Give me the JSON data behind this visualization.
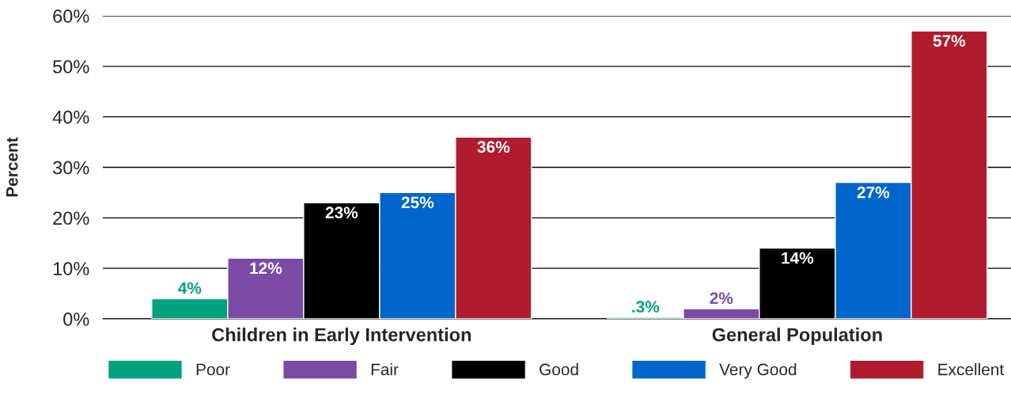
{
  "chart_data": {
    "type": "bar",
    "categories": [
      "Children in Early Intervention",
      "General Population"
    ],
    "ylabel": "Percent",
    "series": [
      {
        "name": "Poor",
        "color": "#00a17e",
        "values": [
          4,
          0.3
        ],
        "value_labels": [
          "4%",
          ".3%"
        ]
      },
      {
        "name": "Fair",
        "color": "#7b4aa5",
        "values": [
          12,
          2
        ],
        "value_labels": [
          "12%",
          "2%"
        ]
      },
      {
        "name": "Good",
        "color": "#000000",
        "values": [
          23,
          14
        ],
        "value_labels": [
          "23%",
          "14%"
        ]
      },
      {
        "name": "Very Good",
        "color": "#0066cc",
        "values": [
          25,
          27
        ],
        "value_labels": [
          "25%",
          "27%"
        ]
      },
      {
        "name": "Excellent",
        "color": "#b01c2e",
        "values": [
          36,
          57
        ],
        "value_labels": [
          "36%",
          "57%"
        ]
      }
    ],
    "ylim": [
      0,
      60
    ],
    "yticks": [
      {
        "value": 0,
        "label": "0%"
      },
      {
        "value": 10,
        "label": "10%"
      },
      {
        "value": 20,
        "label": "20%"
      },
      {
        "value": 30,
        "label": "30%"
      },
      {
        "value": 40,
        "label": "40%"
      },
      {
        "value": 50,
        "label": "50%"
      },
      {
        "value": 60,
        "label": "60%"
      }
    ],
    "grid": "y",
    "legend": "bottom"
  }
}
